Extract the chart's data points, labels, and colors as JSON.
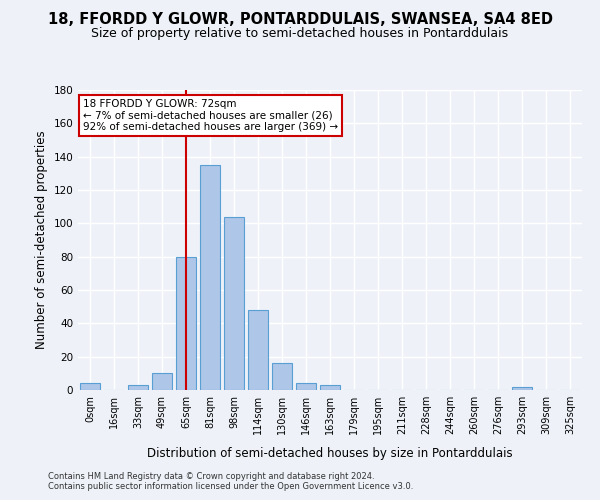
{
  "title": "18, FFORDD Y GLOWR, PONTARDDULAIS, SWANSEA, SA4 8ED",
  "subtitle": "Size of property relative to semi-detached houses in Pontarddulais",
  "xlabel": "Distribution of semi-detached houses by size in Pontarddulais",
  "ylabel": "Number of semi-detached properties",
  "footnote1": "Contains HM Land Registry data © Crown copyright and database right 2024.",
  "footnote2": "Contains public sector information licensed under the Open Government Licence v3.0.",
  "bins": [
    "0sqm",
    "16sqm",
    "33sqm",
    "49sqm",
    "65sqm",
    "81sqm",
    "98sqm",
    "114sqm",
    "130sqm",
    "146sqm",
    "163sqm",
    "179sqm",
    "195sqm",
    "211sqm",
    "228sqm",
    "244sqm",
    "260sqm",
    "276sqm",
    "293sqm",
    "309sqm",
    "325sqm"
  ],
  "bar_heights": [
    4,
    0,
    3,
    10,
    80,
    135,
    104,
    48,
    16,
    4,
    3,
    0,
    0,
    0,
    0,
    0,
    0,
    0,
    2,
    0,
    0
  ],
  "bar_color": "#aec6e8",
  "bar_edge_color": "#5a9fd4",
  "vline_x": 4.0,
  "annotation_title": "18 FFORDD Y GLOWR: 72sqm",
  "annotation_line1": "← 7% of semi-detached houses are smaller (26)",
  "annotation_line2": "92% of semi-detached houses are larger (369) →",
  "ylim": [
    0,
    180
  ],
  "yticks": [
    0,
    20,
    40,
    60,
    80,
    100,
    120,
    140,
    160,
    180
  ],
  "background_color": "#eef2f8",
  "grid_color": "#ffffff",
  "annotation_box_color": "#ffffff",
  "annotation_box_edge": "#cc0000",
  "vline_color": "#cc0000",
  "title_fontsize": 10.5,
  "subtitle_fontsize": 9,
  "axis_label_fontsize": 8.5,
  "tick_fontsize": 7,
  "annot_fontsize": 7.5,
  "footnote_fontsize": 6
}
